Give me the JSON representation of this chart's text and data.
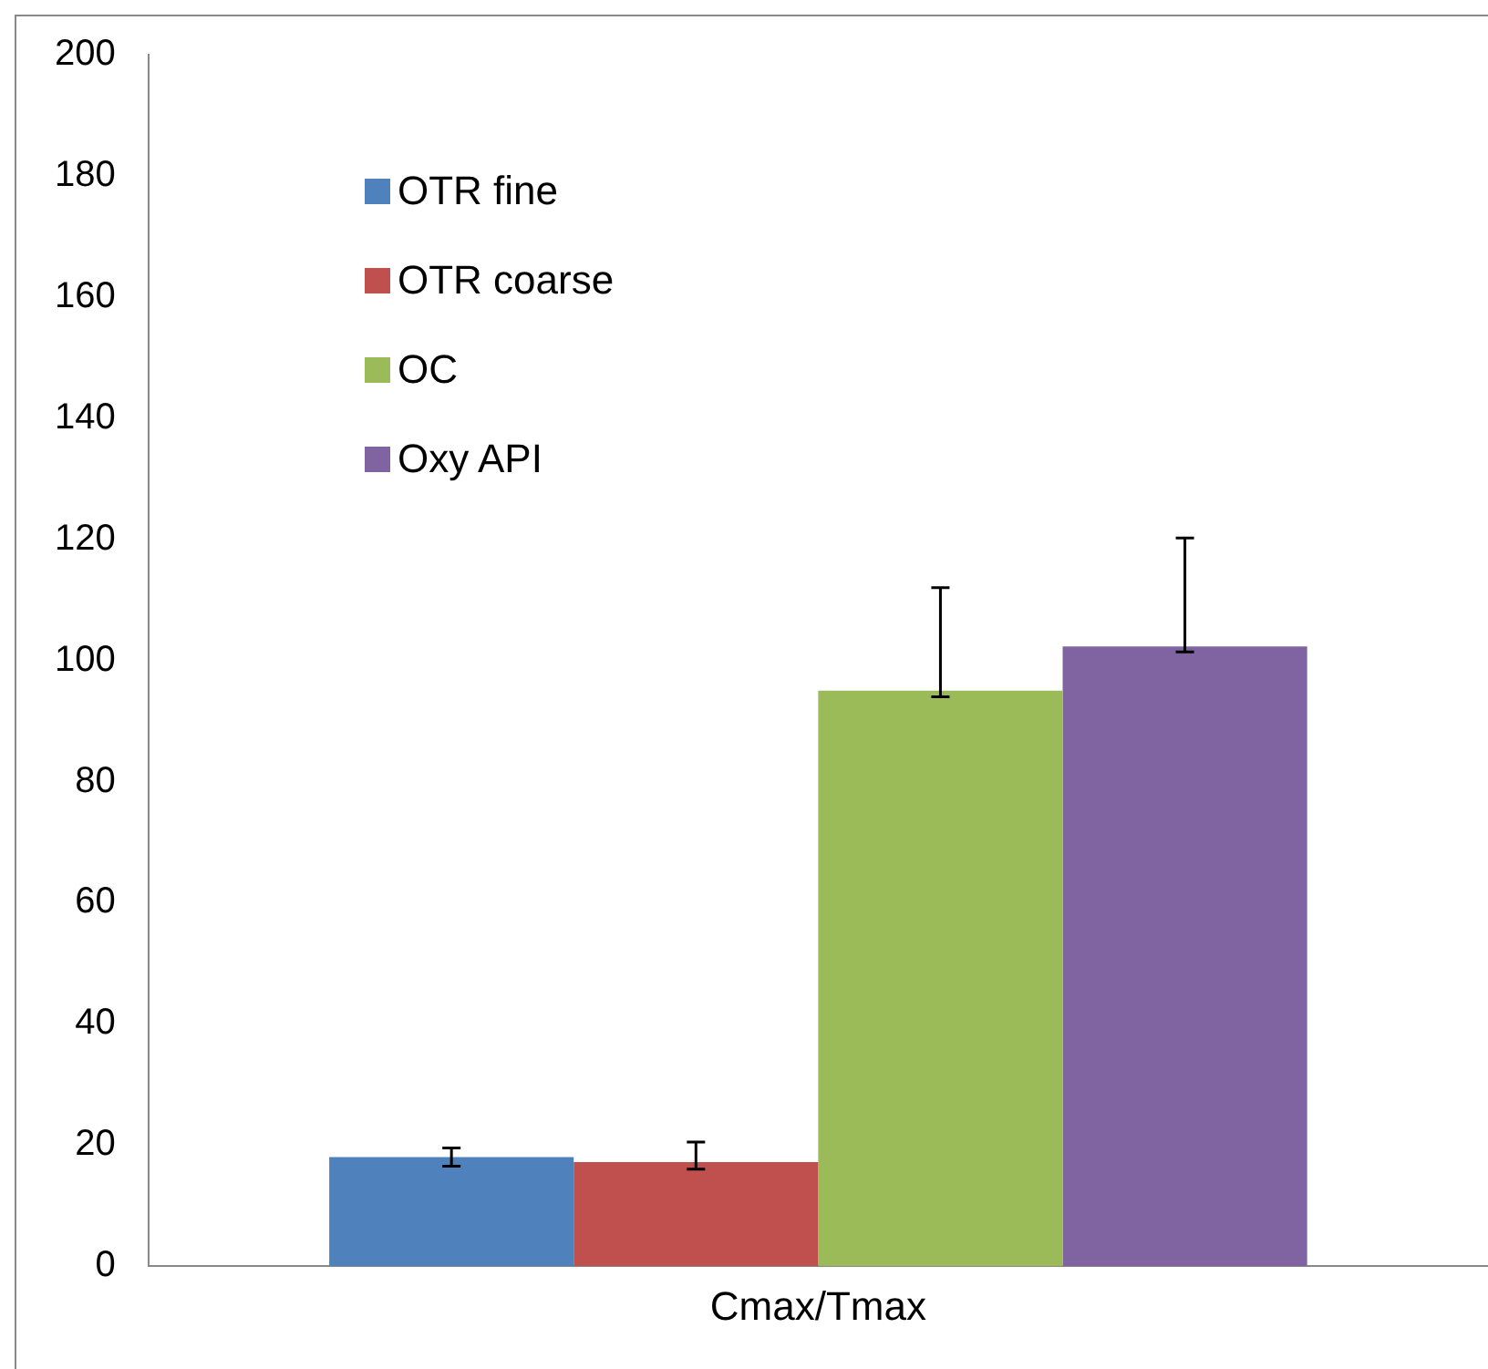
{
  "chart_data": {
    "type": "bar",
    "categories": [
      "Cmax/Tmax"
    ],
    "series": [
      {
        "name": "OTR fine",
        "color": "#4f81bd",
        "values": [
          18
        ],
        "errors": [
          [
            16.5,
            19.5
          ]
        ]
      },
      {
        "name": "OTR coarse",
        "color": "#c0504d",
        "values": [
          17.2
        ],
        "errors": [
          [
            16,
            20.5
          ]
        ]
      },
      {
        "name": "OC",
        "color": "#9bbb59",
        "values": [
          95
        ],
        "errors": [
          [
            94,
            112
          ]
        ]
      },
      {
        "name": "Oxy API",
        "color": "#8064a2",
        "values": [
          102.3
        ],
        "errors": [
          [
            101.4,
            120.2
          ]
        ]
      }
    ],
    "ylim": [
      0,
      200
    ],
    "yticks": [
      0,
      20,
      40,
      60,
      80,
      100,
      120,
      140,
      160,
      180,
      200
    ],
    "grid": false,
    "legend": "top left"
  }
}
